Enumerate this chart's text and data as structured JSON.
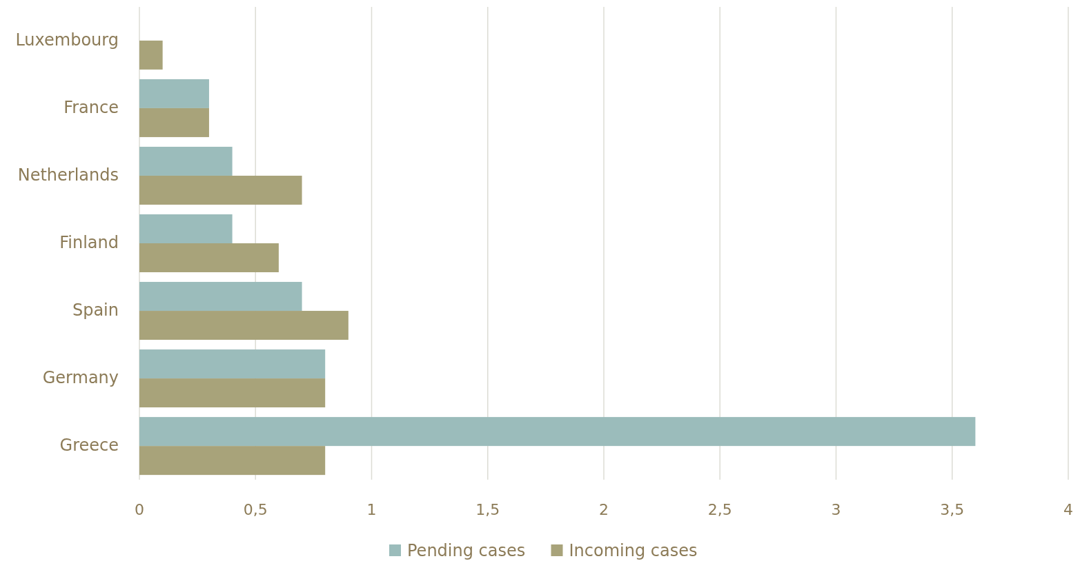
{
  "chart_data": {
    "type": "bar",
    "orientation": "horizontal",
    "categories": [
      "Luxembourg",
      "France",
      "Netherlands",
      "Finland",
      "Spain",
      "Germany",
      "Greece"
    ],
    "series": [
      {
        "name": "Pending cases",
        "color": "#9bbcbb",
        "values": [
          0,
          0.3,
          0.4,
          0.4,
          0.7,
          0.8,
          3.6
        ]
      },
      {
        "name": "Incoming cases",
        "color": "#a8a37a",
        "values": [
          0.1,
          0.3,
          0.7,
          0.6,
          0.9,
          0.8,
          0.8
        ]
      }
    ],
    "xlim": [
      0,
      4
    ],
    "xticks": [
      0,
      {
        "value": 0.5,
        "label": "0,5"
      },
      1,
      {
        "value": 1.5,
        "label": "1,5"
      },
      2,
      {
        "value": 2.5,
        "label": "2,5"
      },
      3,
      {
        "value": 3.5,
        "label": "3,5"
      },
      4
    ],
    "grid": "x",
    "legend": "bottom"
  }
}
